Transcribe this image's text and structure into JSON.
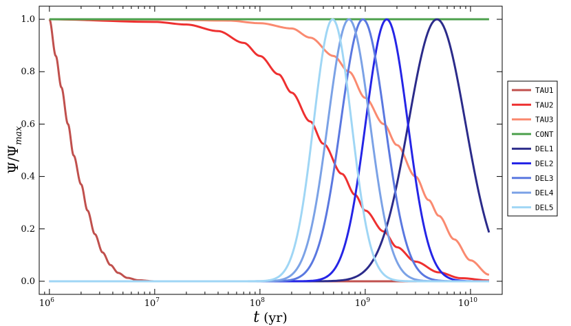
{
  "chart_data": {
    "type": "line",
    "xscale": "log",
    "xlim": [
      800000,
      20000000000
    ],
    "ylim": [
      -0.05,
      1.05
    ],
    "xlabel": {
      "main": "t",
      "unit": "(yr)"
    },
    "ylabel": {
      "main": "Ψ/Ψ",
      "sub": "max"
    },
    "x_ticks": [
      {
        "value": 1000000,
        "base": "10",
        "exp": "6"
      },
      {
        "value": 10000000,
        "base": "10",
        "exp": "7"
      },
      {
        "value": 100000000,
        "base": "10",
        "exp": "8"
      },
      {
        "value": 1000000000,
        "base": "10",
        "exp": "9"
      },
      {
        "value": 10000000000,
        "base": "10",
        "exp": "10"
      }
    ],
    "y_ticks": [
      0.0,
      0.2,
      0.4,
      0.6,
      0.8,
      1.0
    ],
    "y_tick_labels": [
      "0.0",
      "0.2",
      "0.4",
      "0.6",
      "0.8",
      "1.0"
    ],
    "legend_position": "right",
    "series": [
      {
        "name": "TAU1",
        "color": "#c0504d",
        "points": [
          [
            1000000,
            1.0
          ],
          [
            1150000,
            0.86
          ],
          [
            1300000,
            0.74
          ],
          [
            1500000,
            0.6
          ],
          [
            1700000,
            0.48
          ],
          [
            2000000,
            0.37
          ],
          [
            2300000,
            0.27
          ],
          [
            2700000,
            0.18
          ],
          [
            3200000,
            0.11
          ],
          [
            3800000,
            0.062
          ],
          [
            4500000,
            0.032
          ],
          [
            5500000,
            0.013
          ],
          [
            7000000,
            0.004
          ],
          [
            10000000,
            0.0
          ],
          [
            100000000,
            0.0
          ],
          [
            1000000000,
            0.0
          ],
          [
            15000000000,
            0.0
          ]
        ]
      },
      {
        "name": "TAU2",
        "color": "#ee3030",
        "points": [
          [
            1000000,
            1.0
          ],
          [
            10000000,
            0.99
          ],
          [
            20000000,
            0.98
          ],
          [
            40000000,
            0.955
          ],
          [
            70000000,
            0.91
          ],
          [
            100000000,
            0.86
          ],
          [
            150000000,
            0.79
          ],
          [
            200000000,
            0.72
          ],
          [
            300000000,
            0.61
          ],
          [
            400000000,
            0.525
          ],
          [
            600000000,
            0.41
          ],
          [
            800000000,
            0.33
          ],
          [
            1000000000,
            0.27
          ],
          [
            1500000000,
            0.19
          ],
          [
            2000000000,
            0.13
          ],
          [
            3000000000,
            0.075
          ],
          [
            5000000000,
            0.034
          ],
          [
            8000000000,
            0.012
          ],
          [
            15000000000,
            0.003
          ]
        ]
      },
      {
        "name": "TAU3",
        "color": "#fa8a70",
        "points": [
          [
            1000000,
            1.0
          ],
          [
            10000000,
            0.999
          ],
          [
            50000000,
            0.995
          ],
          [
            100000000,
            0.985
          ],
          [
            200000000,
            0.965
          ],
          [
            300000000,
            0.93
          ],
          [
            500000000,
            0.86
          ],
          [
            700000000,
            0.8
          ],
          [
            1000000000,
            0.7
          ],
          [
            1500000000,
            0.6
          ],
          [
            2000000000,
            0.52
          ],
          [
            3000000000,
            0.4
          ],
          [
            4000000000,
            0.31
          ],
          [
            5000000000,
            0.25
          ],
          [
            7000000000,
            0.16
          ],
          [
            10000000000,
            0.08
          ],
          [
            15000000000,
            0.025
          ]
        ]
      },
      {
        "name": "CONT",
        "color": "#4ca04c",
        "points": [
          [
            1000000,
            1.0
          ],
          [
            15000000000,
            1.0
          ]
        ]
      },
      {
        "name": "DEL1",
        "color": "#2b2b8a",
        "peak": 4800000000,
        "width": 0.27,
        "xmax": 15000000000
      },
      {
        "name": "DEL2",
        "color": "#2525e6",
        "peak": 1600000000,
        "width": 0.2,
        "xmax": 15000000000
      },
      {
        "name": "DEL3",
        "color": "#5a78e0",
        "peak": 950000000,
        "width": 0.21,
        "xmax": 15000000000
      },
      {
        "name": "DEL4",
        "color": "#7ba2e6",
        "peak": 700000000,
        "width": 0.2,
        "xmax": 15000000000
      },
      {
        "name": "DEL5",
        "color": "#9fd6f5",
        "peak": 490000000,
        "width": 0.18,
        "xmax": 15000000000
      }
    ]
  }
}
